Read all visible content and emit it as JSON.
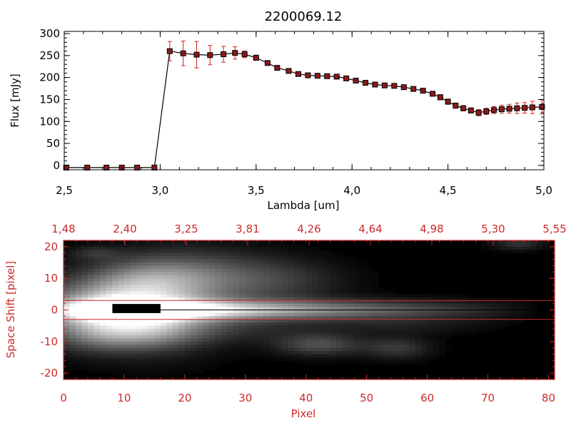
{
  "colors": {
    "spectrum_line": "#000000",
    "marker": "#8b1a1a",
    "error_bar": "#cc2222",
    "lower_panel_axis": "#cc2a2a",
    "upper_panel_axis": "#000000"
  },
  "chart_data": [
    {
      "type": "line",
      "title": "2200069.12",
      "xlabel": "Lambda [um]",
      "ylabel": "Flux [mJy]",
      "xlim": [
        2.5,
        5.0
      ],
      "ylim": [
        -10,
        305
      ],
      "xticks": [
        "2.5",
        "3.0",
        "3.5",
        "4.0",
        "4.5",
        "5.0"
      ],
      "yticks": [
        "0",
        "50",
        "100",
        "150",
        "200",
        "250",
        "300"
      ],
      "grid": false,
      "series": [
        {
          "markers": "filled squares",
          "x": [
            2.51,
            2.62,
            2.72,
            2.8,
            2.88,
            2.97,
            3.05,
            3.12,
            3.19,
            3.26,
            3.33,
            3.39,
            3.44,
            3.5,
            3.56,
            3.61,
            3.67,
            3.72,
            3.77,
            3.82,
            3.87,
            3.92,
            3.97,
            4.02,
            4.07,
            4.12,
            4.17,
            4.22,
            4.27,
            4.32,
            4.37,
            4.42,
            4.46,
            4.5,
            4.54,
            4.58,
            4.62,
            4.66,
            4.7,
            4.74,
            4.78,
            4.82,
            4.86,
            4.9,
            4.94,
            4.99
          ],
          "y": [
            -5,
            -5,
            -5,
            -5,
            -5,
            -5,
            260,
            255,
            252,
            251,
            253,
            256,
            253,
            245,
            233,
            222,
            215,
            208,
            205,
            204,
            203,
            202,
            198,
            193,
            188,
            184,
            182,
            181,
            178,
            174,
            170,
            163,
            155,
            145,
            136,
            130,
            125,
            120,
            123,
            126,
            128,
            129,
            130,
            131,
            132,
            133
          ],
          "yerr": [
            0,
            0,
            0,
            0,
            0,
            0,
            22,
            28,
            30,
            22,
            18,
            14,
            8,
            6,
            5,
            4,
            4,
            4,
            4,
            4,
            4,
            4,
            4,
            4,
            4,
            4,
            4,
            4,
            4,
            4,
            4,
            5,
            6,
            6,
            6,
            6,
            6,
            7,
            7,
            8,
            9,
            10,
            12,
            12,
            14,
            16
          ]
        }
      ]
    },
    {
      "type": "heatmap",
      "xlabel": "Pixel",
      "ylabel": "Space Shift [pixel]",
      "xlim": [
        0,
        81
      ],
      "ylim": [
        -22,
        22
      ],
      "xticks": [
        "0",
        "10",
        "20",
        "30",
        "40",
        "50",
        "60",
        "70",
        "80"
      ],
      "yticks": [
        "-20",
        "-10",
        "0",
        "10",
        "20"
      ],
      "top_axis_ticks": [
        "1.48",
        "2.40",
        "3.25",
        "3.81",
        "4.26",
        "4.64",
        "4.98",
        "5.30",
        "5.55"
      ],
      "colormap": "grayscale",
      "extraction_aperture": [
        -3,
        3
      ],
      "blobs": [
        {
          "x": 8,
          "y": 0,
          "sx": 9,
          "sy": 6,
          "a": 0.7
        },
        {
          "x": 11,
          "y": 0.5,
          "sx": 2.5,
          "sy": 1.6,
          "a": 0.75
        },
        {
          "x": 15,
          "y": 0,
          "sx": 9,
          "sy": 10,
          "a": 0.2
        },
        {
          "x": 14,
          "y": 9,
          "sx": 7,
          "sy": 5,
          "a": 0.3
        },
        {
          "x": 22,
          "y": 11,
          "sx": 9,
          "sy": 6,
          "a": 0.25
        },
        {
          "x": 35,
          "y": 9,
          "sx": 8,
          "sy": 5,
          "a": 0.2
        },
        {
          "x": 14,
          "y": -7,
          "sx": 6,
          "sy": 4,
          "a": 0.28
        },
        {
          "x": 5,
          "y": -8,
          "sx": 5,
          "sy": 4,
          "a": 0.2
        },
        {
          "x": 28,
          "y": -6,
          "sx": 10,
          "sy": 3,
          "a": 0.12
        },
        {
          "x": 42,
          "y": -11,
          "sx": 5,
          "sy": 2.5,
          "a": 0.3
        },
        {
          "x": 55,
          "y": -12,
          "sx": 4,
          "sy": 2.5,
          "a": 0.22
        },
        {
          "x": 55,
          "y": -5,
          "sx": 10,
          "sy": 2,
          "a": 0.1
        },
        {
          "x": 75,
          "y": 21,
          "sx": 3,
          "sy": 1.5,
          "a": 0.2
        },
        {
          "x": 5,
          "y": 18,
          "sx": 3,
          "sy": 1.5,
          "a": 0.15
        }
      ]
    }
  ]
}
